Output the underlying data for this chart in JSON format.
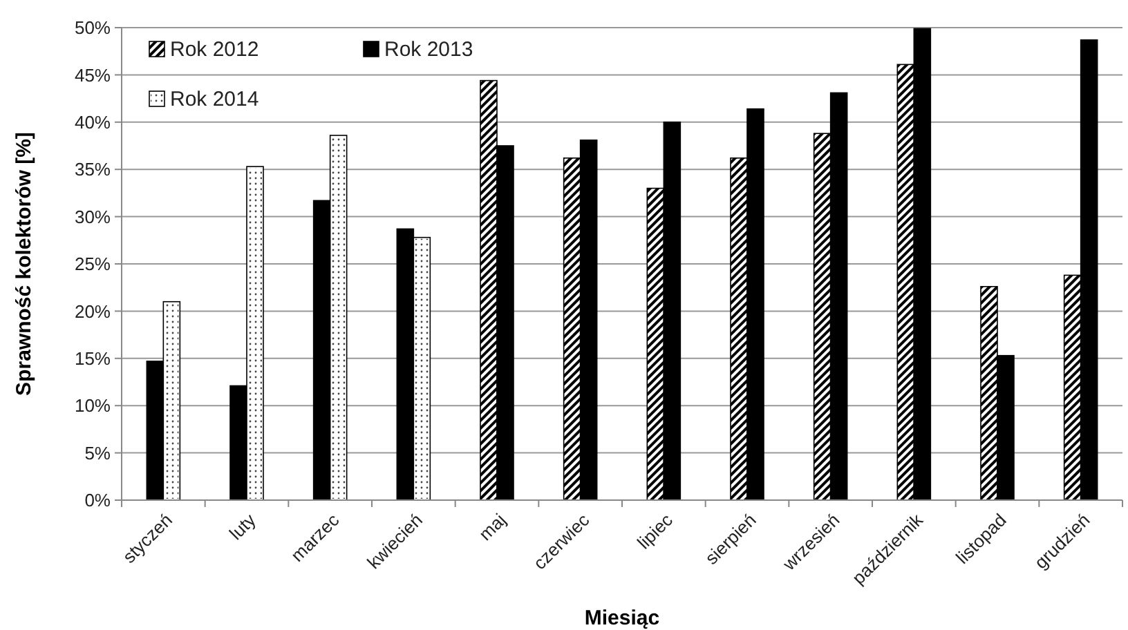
{
  "chart_data": {
    "type": "bar",
    "xlabel": "Miesiąc",
    "ylabel": "Sprawność kolektorów [%]",
    "categories": [
      "styczeń",
      "luty",
      "marzec",
      "kwiecień",
      "maj",
      "czerwiec",
      "lipiec",
      "sierpień",
      "wrzesień",
      "październik",
      "listopad",
      "grudzień"
    ],
    "series": [
      {
        "name": "Rok 2012",
        "color": "#000000",
        "values": [
          null,
          null,
          null,
          null,
          44.4,
          36.2,
          33.0,
          36.2,
          38.8,
          46.1,
          22.6,
          23.8
        ]
      },
      {
        "name": "Rok 2013",
        "color": "#000000",
        "values": [
          14.7,
          12.1,
          31.7,
          28.7,
          37.5,
          38.1,
          40.0,
          41.4,
          43.1,
          49.9,
          15.3,
          48.7
        ]
      },
      {
        "name": "Rok 2014",
        "color": "#ffffff",
        "values": [
          21.0,
          35.3,
          38.6,
          27.8,
          null,
          null,
          null,
          null,
          null,
          null,
          null,
          null
        ]
      }
    ],
    "ylim": [
      0,
      50
    ],
    "yticks": [
      {
        "value": 0,
        "label": "0%"
      },
      {
        "value": 5,
        "label": "5%"
      },
      {
        "value": 10,
        "label": "10%"
      },
      {
        "value": 15,
        "label": "15%"
      },
      {
        "value": 20,
        "label": "20%"
      },
      {
        "value": 25,
        "label": "25%"
      },
      {
        "value": 30,
        "label": "30%"
      },
      {
        "value": 35,
        "label": "35%"
      },
      {
        "value": 40,
        "label": "40%"
      },
      {
        "value": 45,
        "label": "45%"
      },
      {
        "value": 50,
        "label": "50%"
      }
    ],
    "grid": "y",
    "legend": "top left"
  }
}
